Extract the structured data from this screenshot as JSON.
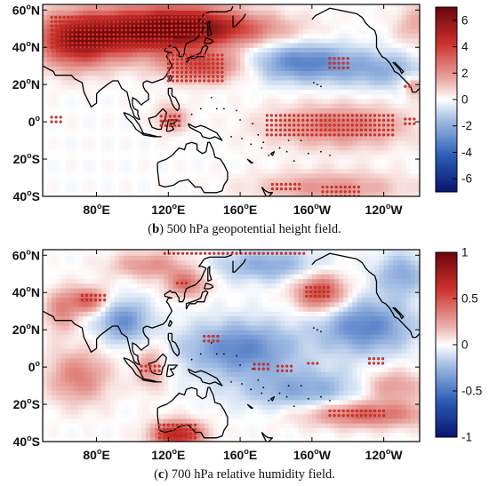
{
  "chart_data": [
    {
      "type": "heatmap",
      "panel_letter": "b",
      "caption": "500 hPa geopotential height field.",
      "x_ticks": [
        {
          "value": 80,
          "deg": "80",
          "hemi": "E"
        },
        {
          "value": 120,
          "deg": "120",
          "hemi": "E"
        },
        {
          "value": 160,
          "deg": "160",
          "hemi": "E"
        },
        {
          "value": 200,
          "deg": "160",
          "hemi": "W"
        },
        {
          "value": 240,
          "deg": "120",
          "hemi": "W"
        }
      ],
      "y_ticks": [
        {
          "value": 60,
          "deg": "60",
          "hemi": "N"
        },
        {
          "value": 40,
          "deg": "40",
          "hemi": "N"
        },
        {
          "value": 20,
          "deg": "20",
          "hemi": "N"
        },
        {
          "value": 0,
          "deg": "0",
          "hemi": ""
        },
        {
          "value": -20,
          "deg": "20",
          "hemi": "S"
        },
        {
          "value": -40,
          "deg": "40",
          "hemi": "S"
        }
      ],
      "xlim": [
        50,
        260
      ],
      "ylim": [
        -40,
        63
      ],
      "colorbar": {
        "vmin": -7,
        "vmax": 7,
        "ticks": [
          6,
          4,
          2,
          0,
          -2,
          -4,
          -6
        ]
      },
      "field": [
        {
          "lon": 95,
          "lat": 48,
          "amp": 5.2,
          "sx": 28,
          "sy": 9
        },
        {
          "lon": 130,
          "lat": 52,
          "amp": 4.0,
          "sx": 22,
          "sy": 8
        },
        {
          "lon": 68,
          "lat": 42,
          "amp": 3.5,
          "sx": 14,
          "sy": 10
        },
        {
          "lon": 158,
          "lat": 50,
          "amp": 2.2,
          "sx": 25,
          "sy": 6
        },
        {
          "lon": 140,
          "lat": 30,
          "amp": 3.2,
          "sx": 16,
          "sy": 6
        },
        {
          "lon": 122,
          "lat": 2,
          "amp": 2.2,
          "sx": 6,
          "sy": 5
        },
        {
          "lon": 215,
          "lat": -2,
          "amp": 2.6,
          "sx": 26,
          "sy": 8
        },
        {
          "lon": 210,
          "lat": -35,
          "amp": 2.0,
          "sx": 28,
          "sy": 6
        },
        {
          "lon": 195,
          "lat": 32,
          "amp": -3.2,
          "sx": 20,
          "sy": 7
        },
        {
          "lon": 240,
          "lat": 28,
          "amp": -1.8,
          "sx": 18,
          "sy": 7
        },
        {
          "lon": 258,
          "lat": 52,
          "amp": 1.5,
          "sx": 8,
          "sy": 8
        },
        {
          "lon": 257,
          "lat": 20,
          "amp": 2.2,
          "sx": 4,
          "sy": 4
        }
      ],
      "significant_regions": [
        {
          "lon": [
            55,
            122
          ],
          "lat": [
            40,
            57
          ],
          "step": [
            2.3,
            2.3
          ]
        },
        {
          "lon": [
            122,
            142
          ],
          "lat": [
            47,
            60
          ],
          "step": [
            2.3,
            2.3
          ]
        },
        {
          "lon": [
            120,
            150
          ],
          "lat": [
            22,
            36
          ],
          "step": [
            2.5,
            2.3
          ]
        },
        {
          "lon": [
            55,
            60
          ],
          "lat": [
            0,
            4
          ],
          "step": [
            2.5,
            2.5
          ]
        },
        {
          "lon": [
            116,
            128
          ],
          "lat": [
            -2,
            5
          ],
          "step": [
            2.5,
            2.5
          ]
        },
        {
          "lon": [
            175,
            246
          ],
          "lat": [
            -7,
            4
          ],
          "step": [
            2.5,
            2.6
          ]
        },
        {
          "lon": [
            206,
            226
          ],
          "lat": [
            -40,
            -34
          ],
          "step": [
            2.5,
            2.5
          ]
        },
        {
          "lon": [
            178,
            194
          ],
          "lat": [
            -36,
            -32
          ],
          "step": [
            2.5,
            2.5
          ]
        },
        {
          "lon": [
            210,
            220
          ],
          "lat": [
            29,
            35
          ],
          "step": [
            2.5,
            2.5
          ]
        },
        {
          "lon": [
            252,
            257
          ],
          "lat": [
            -1,
            2
          ],
          "step": [
            2.5,
            2.5
          ]
        },
        {
          "lon": [
            252,
            256
          ],
          "lat": [
            19,
            21
          ],
          "step": [
            2.5,
            2.5
          ]
        }
      ]
    },
    {
      "type": "heatmap",
      "panel_letter": "c",
      "caption": "700 hPa relative humidity field.",
      "x_ticks": [
        {
          "value": 80,
          "deg": "80",
          "hemi": "E"
        },
        {
          "value": 120,
          "deg": "120",
          "hemi": "E"
        },
        {
          "value": 160,
          "deg": "160",
          "hemi": "E"
        },
        {
          "value": 200,
          "deg": "160",
          "hemi": "W"
        },
        {
          "value": 240,
          "deg": "120",
          "hemi": "W"
        }
      ],
      "y_ticks": [
        {
          "value": 60,
          "deg": "60",
          "hemi": "N"
        },
        {
          "value": 40,
          "deg": "40",
          "hemi": "N"
        },
        {
          "value": 20,
          "deg": "20",
          "hemi": "N"
        },
        {
          "value": 0,
          "deg": "0",
          "hemi": ""
        },
        {
          "value": -20,
          "deg": "20",
          "hemi": "S"
        },
        {
          "value": -40,
          "deg": "40",
          "hemi": "S"
        }
      ],
      "xlim": [
        50,
        260
      ],
      "ylim": [
        -40,
        63
      ],
      "colorbar": {
        "vmin": -1,
        "vmax": 1,
        "ticks": [
          1,
          0.5,
          0,
          -0.5,
          -1
        ]
      },
      "field": [
        {
          "lon": 205,
          "lat": 40,
          "amp": 0.55,
          "sx": 10,
          "sy": 7
        },
        {
          "lon": 125,
          "lat": -36,
          "amp": 0.7,
          "sx": 10,
          "sy": 5
        },
        {
          "lon": 230,
          "lat": -25,
          "amp": 0.45,
          "sx": 25,
          "sy": 5
        },
        {
          "lon": 130,
          "lat": 45,
          "amp": 0.4,
          "sx": 8,
          "sy": 5
        },
        {
          "lon": 75,
          "lat": 36,
          "amp": 0.45,
          "sx": 8,
          "sy": 5
        },
        {
          "lon": 160,
          "lat": 10,
          "amp": -0.45,
          "sx": 22,
          "sy": 10
        },
        {
          "lon": 230,
          "lat": 22,
          "amp": -0.45,
          "sx": 18,
          "sy": 10
        },
        {
          "lon": 95,
          "lat": 25,
          "amp": -0.4,
          "sx": 10,
          "sy": 8
        },
        {
          "lon": 195,
          "lat": -12,
          "amp": -0.3,
          "sx": 25,
          "sy": 8
        },
        {
          "lon": 245,
          "lat": -10,
          "amp": 0.3,
          "sx": 12,
          "sy": 6
        },
        {
          "lon": 70,
          "lat": -5,
          "amp": 0.35,
          "sx": 12,
          "sy": 10
        },
        {
          "lon": 175,
          "lat": 55,
          "amp": -0.3,
          "sx": 20,
          "sy": 6
        },
        {
          "lon": 110,
          "lat": 55,
          "amp": 0.3,
          "sx": 15,
          "sy": 5
        },
        {
          "lon": 60,
          "lat": 30,
          "amp": 0.3,
          "sx": 6,
          "sy": 8
        },
        {
          "lon": 250,
          "lat": 50,
          "amp": -0.3,
          "sx": 10,
          "sy": 8
        },
        {
          "lon": 110,
          "lat": 0,
          "amp": 0.3,
          "sx": 6,
          "sy": 8
        }
      ],
      "significant_regions": [
        {
          "lon": [
            118,
            196
          ],
          "lat": [
            61,
            63
          ],
          "step": [
            2.5,
            2.5
          ]
        },
        {
          "lon": [
            197,
            210
          ],
          "lat": [
            38,
            45
          ],
          "step": [
            2.4,
            2.4
          ]
        },
        {
          "lon": [
            72,
            85
          ],
          "lat": [
            36,
            40
          ],
          "step": [
            2.5,
            2.5
          ]
        },
        {
          "lon": [
            125,
            132
          ],
          "lat": [
            45,
            47
          ],
          "step": [
            2.5,
            2.5
          ]
        },
        {
          "lon": [
            115,
            135
          ],
          "lat": [
            -38,
            -31
          ],
          "step": [
            2.5,
            2.3
          ]
        },
        {
          "lon": [
            210,
            240
          ],
          "lat": [
            -26,
            -23
          ],
          "step": [
            2.5,
            2.5
          ]
        },
        {
          "lon": [
            198,
            204
          ],
          "lat": [
            2,
            4
          ],
          "step": [
            2.5,
            2.5
          ]
        },
        {
          "lon": [
            232,
            240
          ],
          "lat": [
            2,
            5
          ],
          "step": [
            2.5,
            2.5
          ]
        },
        {
          "lon": [
            105,
            115
          ],
          "lat": [
            -2,
            2
          ],
          "step": [
            2.5,
            2.5
          ]
        },
        {
          "lon": [
            168,
            176
          ],
          "lat": [
            -1,
            3
          ],
          "step": [
            2.5,
            2.5
          ]
        },
        {
          "lon": [
            140,
            148
          ],
          "lat": [
            14,
            18
          ],
          "step": [
            2.5,
            2.5
          ]
        },
        {
          "lon": [
            181,
            190
          ],
          "lat": [
            -2,
            1
          ],
          "step": [
            2.5,
            2.5
          ]
        }
      ]
    }
  ]
}
